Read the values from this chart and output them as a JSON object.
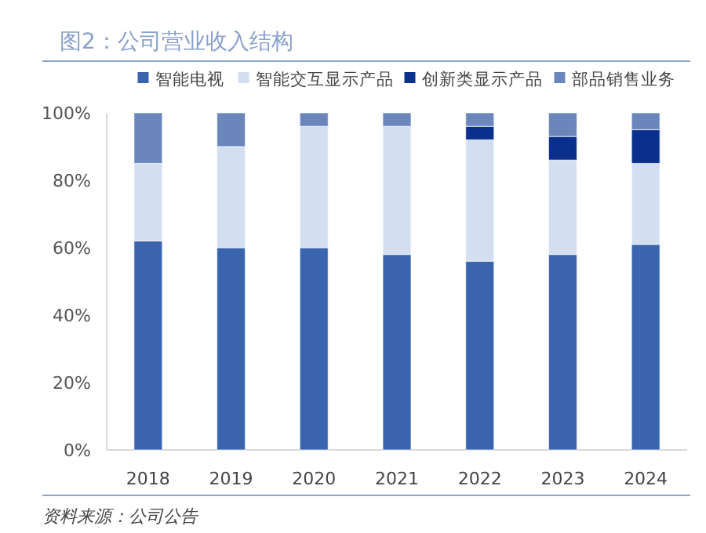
{
  "chart_data": {
    "type": "bar",
    "title": "图2：公司营业收入结构",
    "stacked": true,
    "legend": "top",
    "grid": false,
    "categories": [
      "2018",
      "2019",
      "2020",
      "2021",
      "2022",
      "2023",
      "2024"
    ],
    "series": [
      {
        "name": "智能电视",
        "color": "#3a64ae",
        "values": [
          62,
          60,
          60,
          58,
          56,
          58,
          61
        ]
      },
      {
        "name": "智能交互显示产品",
        "color": "#d3dff1",
        "values": [
          23,
          30,
          36,
          38,
          36,
          28,
          24
        ]
      },
      {
        "name": "创新类显示产品",
        "color": "#0a2f8d",
        "values": [
          0,
          0,
          0,
          0,
          4,
          7,
          10
        ]
      },
      {
        "name": "部品销售业务",
        "color": "#6b86ba",
        "values": [
          15,
          10,
          4,
          4,
          4,
          7,
          5
        ]
      }
    ],
    "ylim": [
      0,
      100
    ],
    "yticks": [
      {
        "value": 0,
        "label": "0%"
      },
      {
        "value": 20,
        "label": "20%"
      },
      {
        "value": 40,
        "label": "40%"
      },
      {
        "value": 60,
        "label": "60%"
      },
      {
        "value": 80,
        "label": "80%"
      },
      {
        "value": 100,
        "label": "100%"
      }
    ],
    "annotations": [
      "资料来源：公司公告"
    ]
  }
}
